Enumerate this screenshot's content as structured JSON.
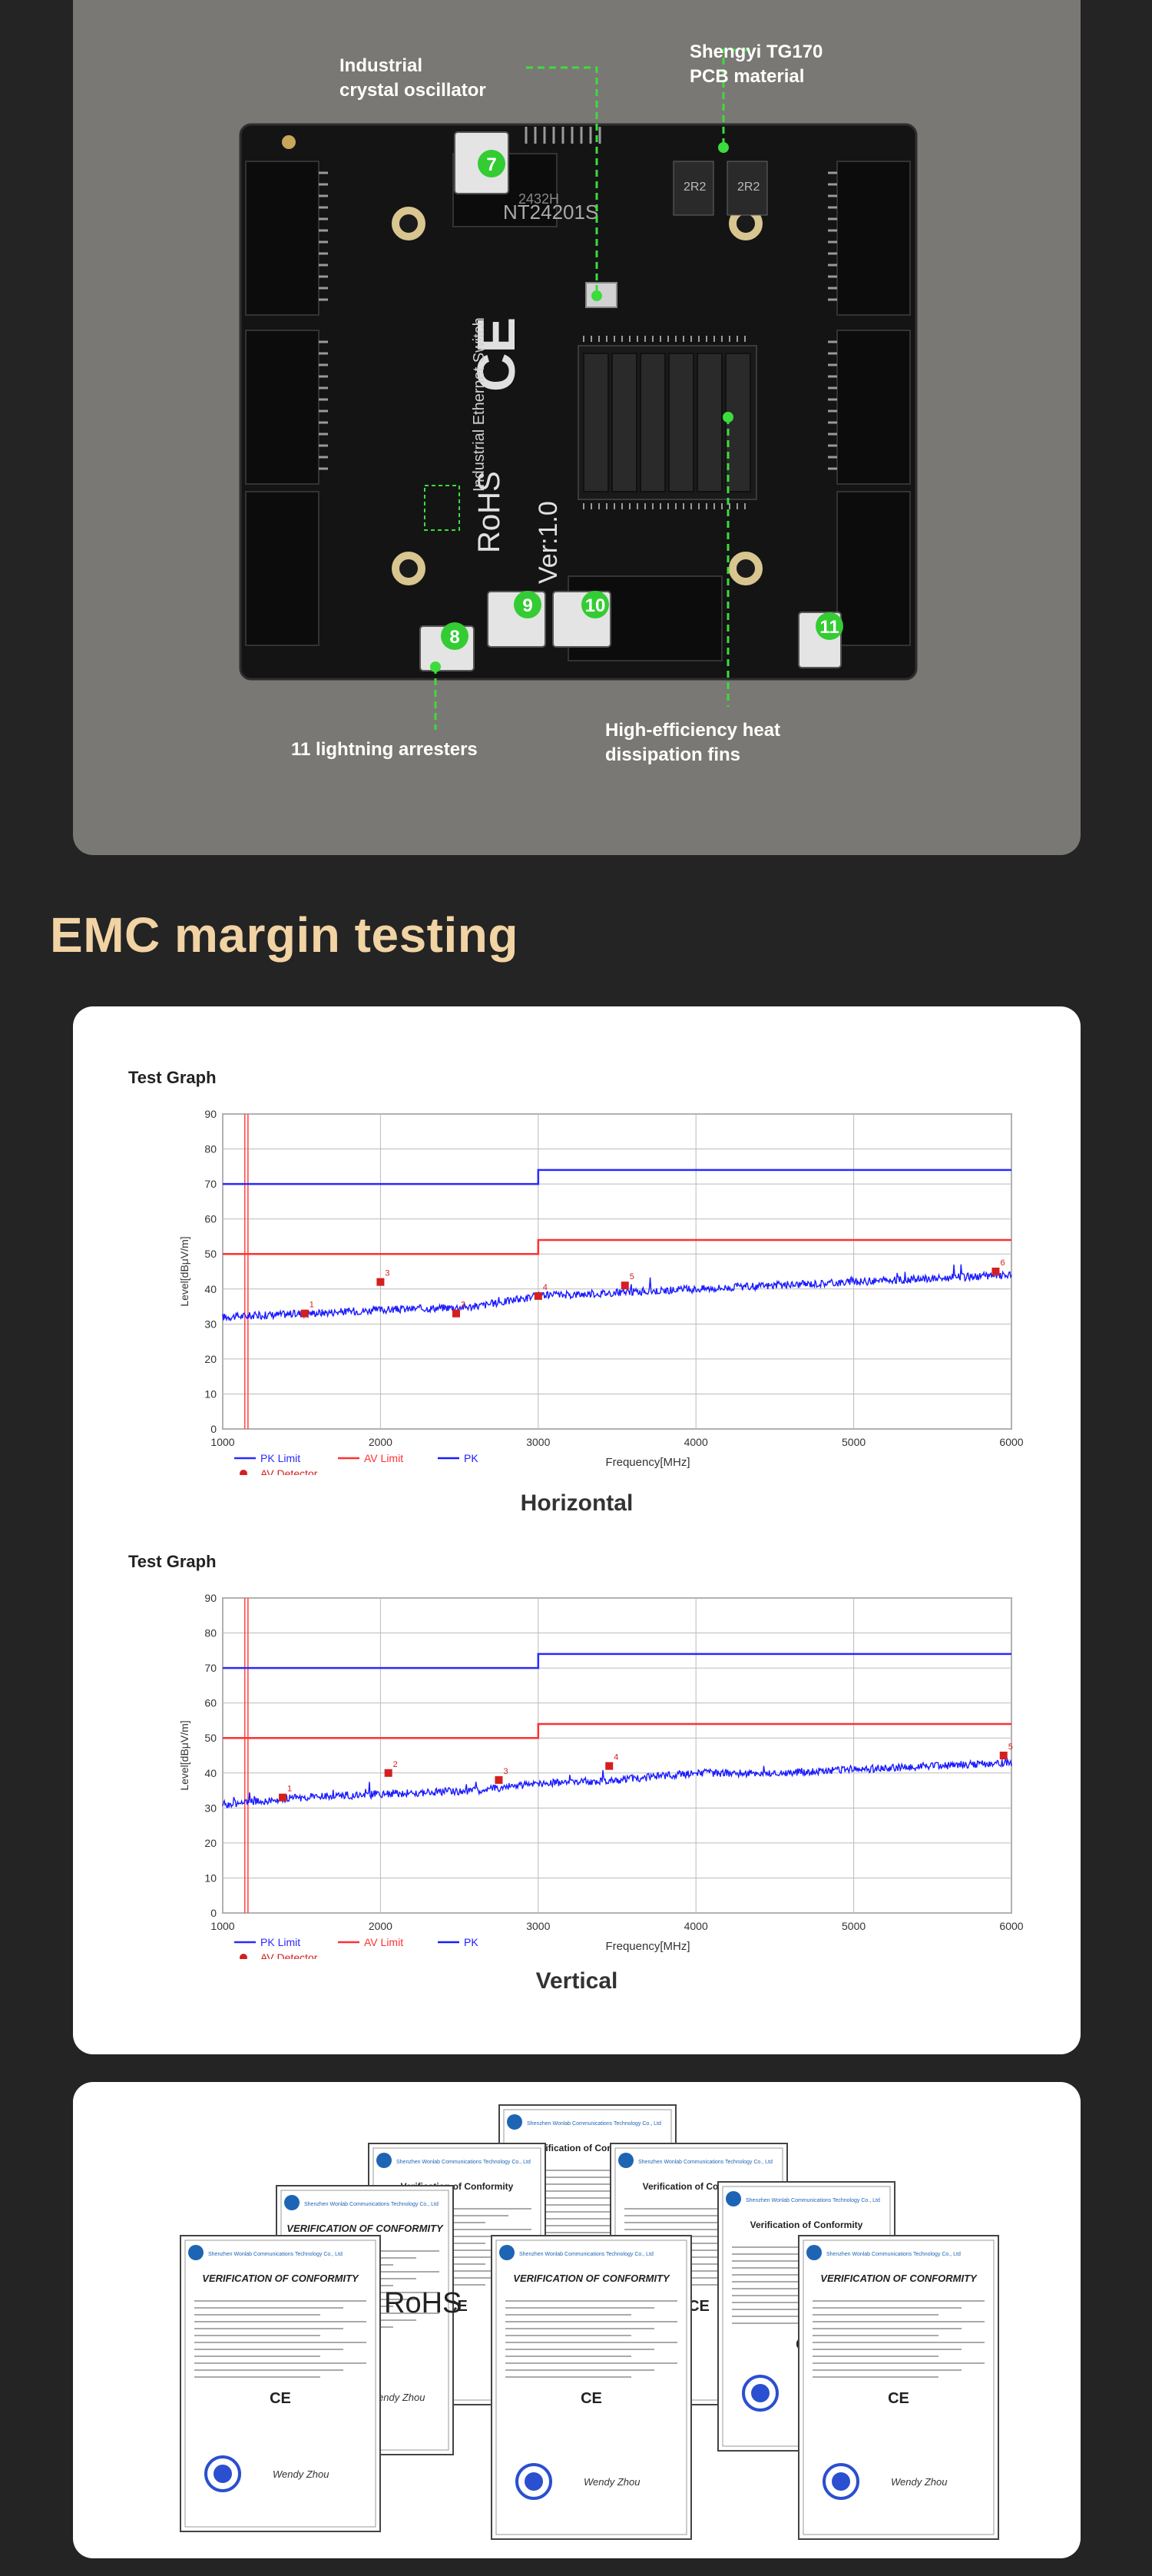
{
  "pcb": {
    "callouts": {
      "oscillator": "Industrial\ncrystal oscillator",
      "pcb_material": "Shengyi TG170\nPCB material",
      "arresters": "11 lightning arresters",
      "heatsink": "High-efficiency heat\ndissipation fins"
    },
    "board_markings": {
      "version": "Ver:1.0",
      "rohs": "RoHS",
      "ce": "CE",
      "product": "Industrial Ethernet Switch",
      "inductor": "2R2",
      "transformer": "NT24201S",
      "lot": "2432H"
    },
    "arrester_numbers": [
      "7",
      "8",
      "9",
      "10",
      "11"
    ]
  },
  "section_title": "EMC margin testing",
  "charts": {
    "horizontal_label": "Horizontal",
    "vertical_label": "Vertical"
  },
  "chart_data": [
    {
      "type": "line",
      "title": "Test Graph",
      "xlabel": "Frequency[MHz]",
      "ylabel": "Level[dBμV/m]",
      "xlim": [
        1000,
        6000
      ],
      "ylim": [
        0,
        90
      ],
      "x_ticks": [
        1000,
        2000,
        3000,
        4000,
        5000,
        6000
      ],
      "y_ticks": [
        0,
        10,
        20,
        30,
        40,
        50,
        60,
        70,
        80,
        90
      ],
      "grid": true,
      "legend": [
        "PK Limit",
        "AV Limit",
        "PK",
        "AV Detector"
      ],
      "series": [
        {
          "name": "PK Limit",
          "color": "#2a2aff",
          "x": [
            1000,
            3000,
            3000,
            6000
          ],
          "y": [
            70,
            70,
            74,
            74
          ]
        },
        {
          "name": "AV Limit",
          "color": "#ff3030",
          "x": [
            1000,
            3000,
            3000,
            6000
          ],
          "y": [
            50,
            50,
            54,
            54
          ]
        },
        {
          "name": "PK",
          "color": "#1a1aff",
          "x": [
            1000,
            1500,
            2000,
            2600,
            3000,
            3500,
            4000,
            4500,
            5000,
            5500,
            6000
          ],
          "y": [
            32,
            33,
            34,
            35,
            38,
            39,
            40,
            41,
            42,
            43,
            44
          ]
        },
        {
          "name": "AV Detector",
          "color": "#d42020",
          "markers": [
            {
              "label": "1",
              "x": 1520,
              "y": 33
            },
            {
              "label": "2",
              "x": 2480,
              "y": 33
            },
            {
              "label": "3",
              "x": 2000,
              "y": 42
            },
            {
              "label": "4",
              "x": 3000,
              "y": 38
            },
            {
              "label": "5",
              "x": 3550,
              "y": 41
            },
            {
              "label": "6",
              "x": 5900,
              "y": 45
            }
          ]
        }
      ]
    },
    {
      "type": "line",
      "title": "Test Graph",
      "xlabel": "Frequency[MHz]",
      "ylabel": "Level[dBμV/m]",
      "xlim": [
        1000,
        6000
      ],
      "ylim": [
        0,
        90
      ],
      "x_ticks": [
        1000,
        2000,
        3000,
        4000,
        5000,
        6000
      ],
      "y_ticks": [
        0,
        10,
        20,
        30,
        40,
        50,
        60,
        70,
        80,
        90
      ],
      "grid": true,
      "legend": [
        "PK Limit",
        "AV Limit",
        "PK",
        "AV Detector"
      ],
      "series": [
        {
          "name": "PK Limit",
          "color": "#2a2aff",
          "x": [
            1000,
            3000,
            3000,
            6000
          ],
          "y": [
            70,
            70,
            74,
            74
          ]
        },
        {
          "name": "AV Limit",
          "color": "#ff3030",
          "x": [
            1000,
            3000,
            3000,
            6000
          ],
          "y": [
            50,
            50,
            54,
            54
          ]
        },
        {
          "name": "PK",
          "color": "#1a1aff",
          "x": [
            1000,
            1500,
            2000,
            2600,
            3000,
            3500,
            4000,
            4500,
            5000,
            5500,
            6000
          ],
          "y": [
            31,
            33,
            34,
            35,
            37,
            38,
            40,
            40,
            41,
            42,
            43
          ]
        },
        {
          "name": "AV Detector",
          "color": "#d42020",
          "markers": [
            {
              "label": "1",
              "x": 1380,
              "y": 33
            },
            {
              "label": "2",
              "x": 2050,
              "y": 40
            },
            {
              "label": "3",
              "x": 2750,
              "y": 38
            },
            {
              "label": "4",
              "x": 3450,
              "y": 42
            },
            {
              "label": "5",
              "x": 5950,
              "y": 45
            }
          ]
        }
      ]
    }
  ],
  "certificates": {
    "company": "Shenzhen Wonlab Communications Technology Co., Ltd",
    "heading": "VERIFICATION OF CONFORMITY",
    "heading_alt": "Verification of Conformity",
    "mark": "CE",
    "rohs": "RoHS",
    "signature": "Wendy Zhou"
  }
}
